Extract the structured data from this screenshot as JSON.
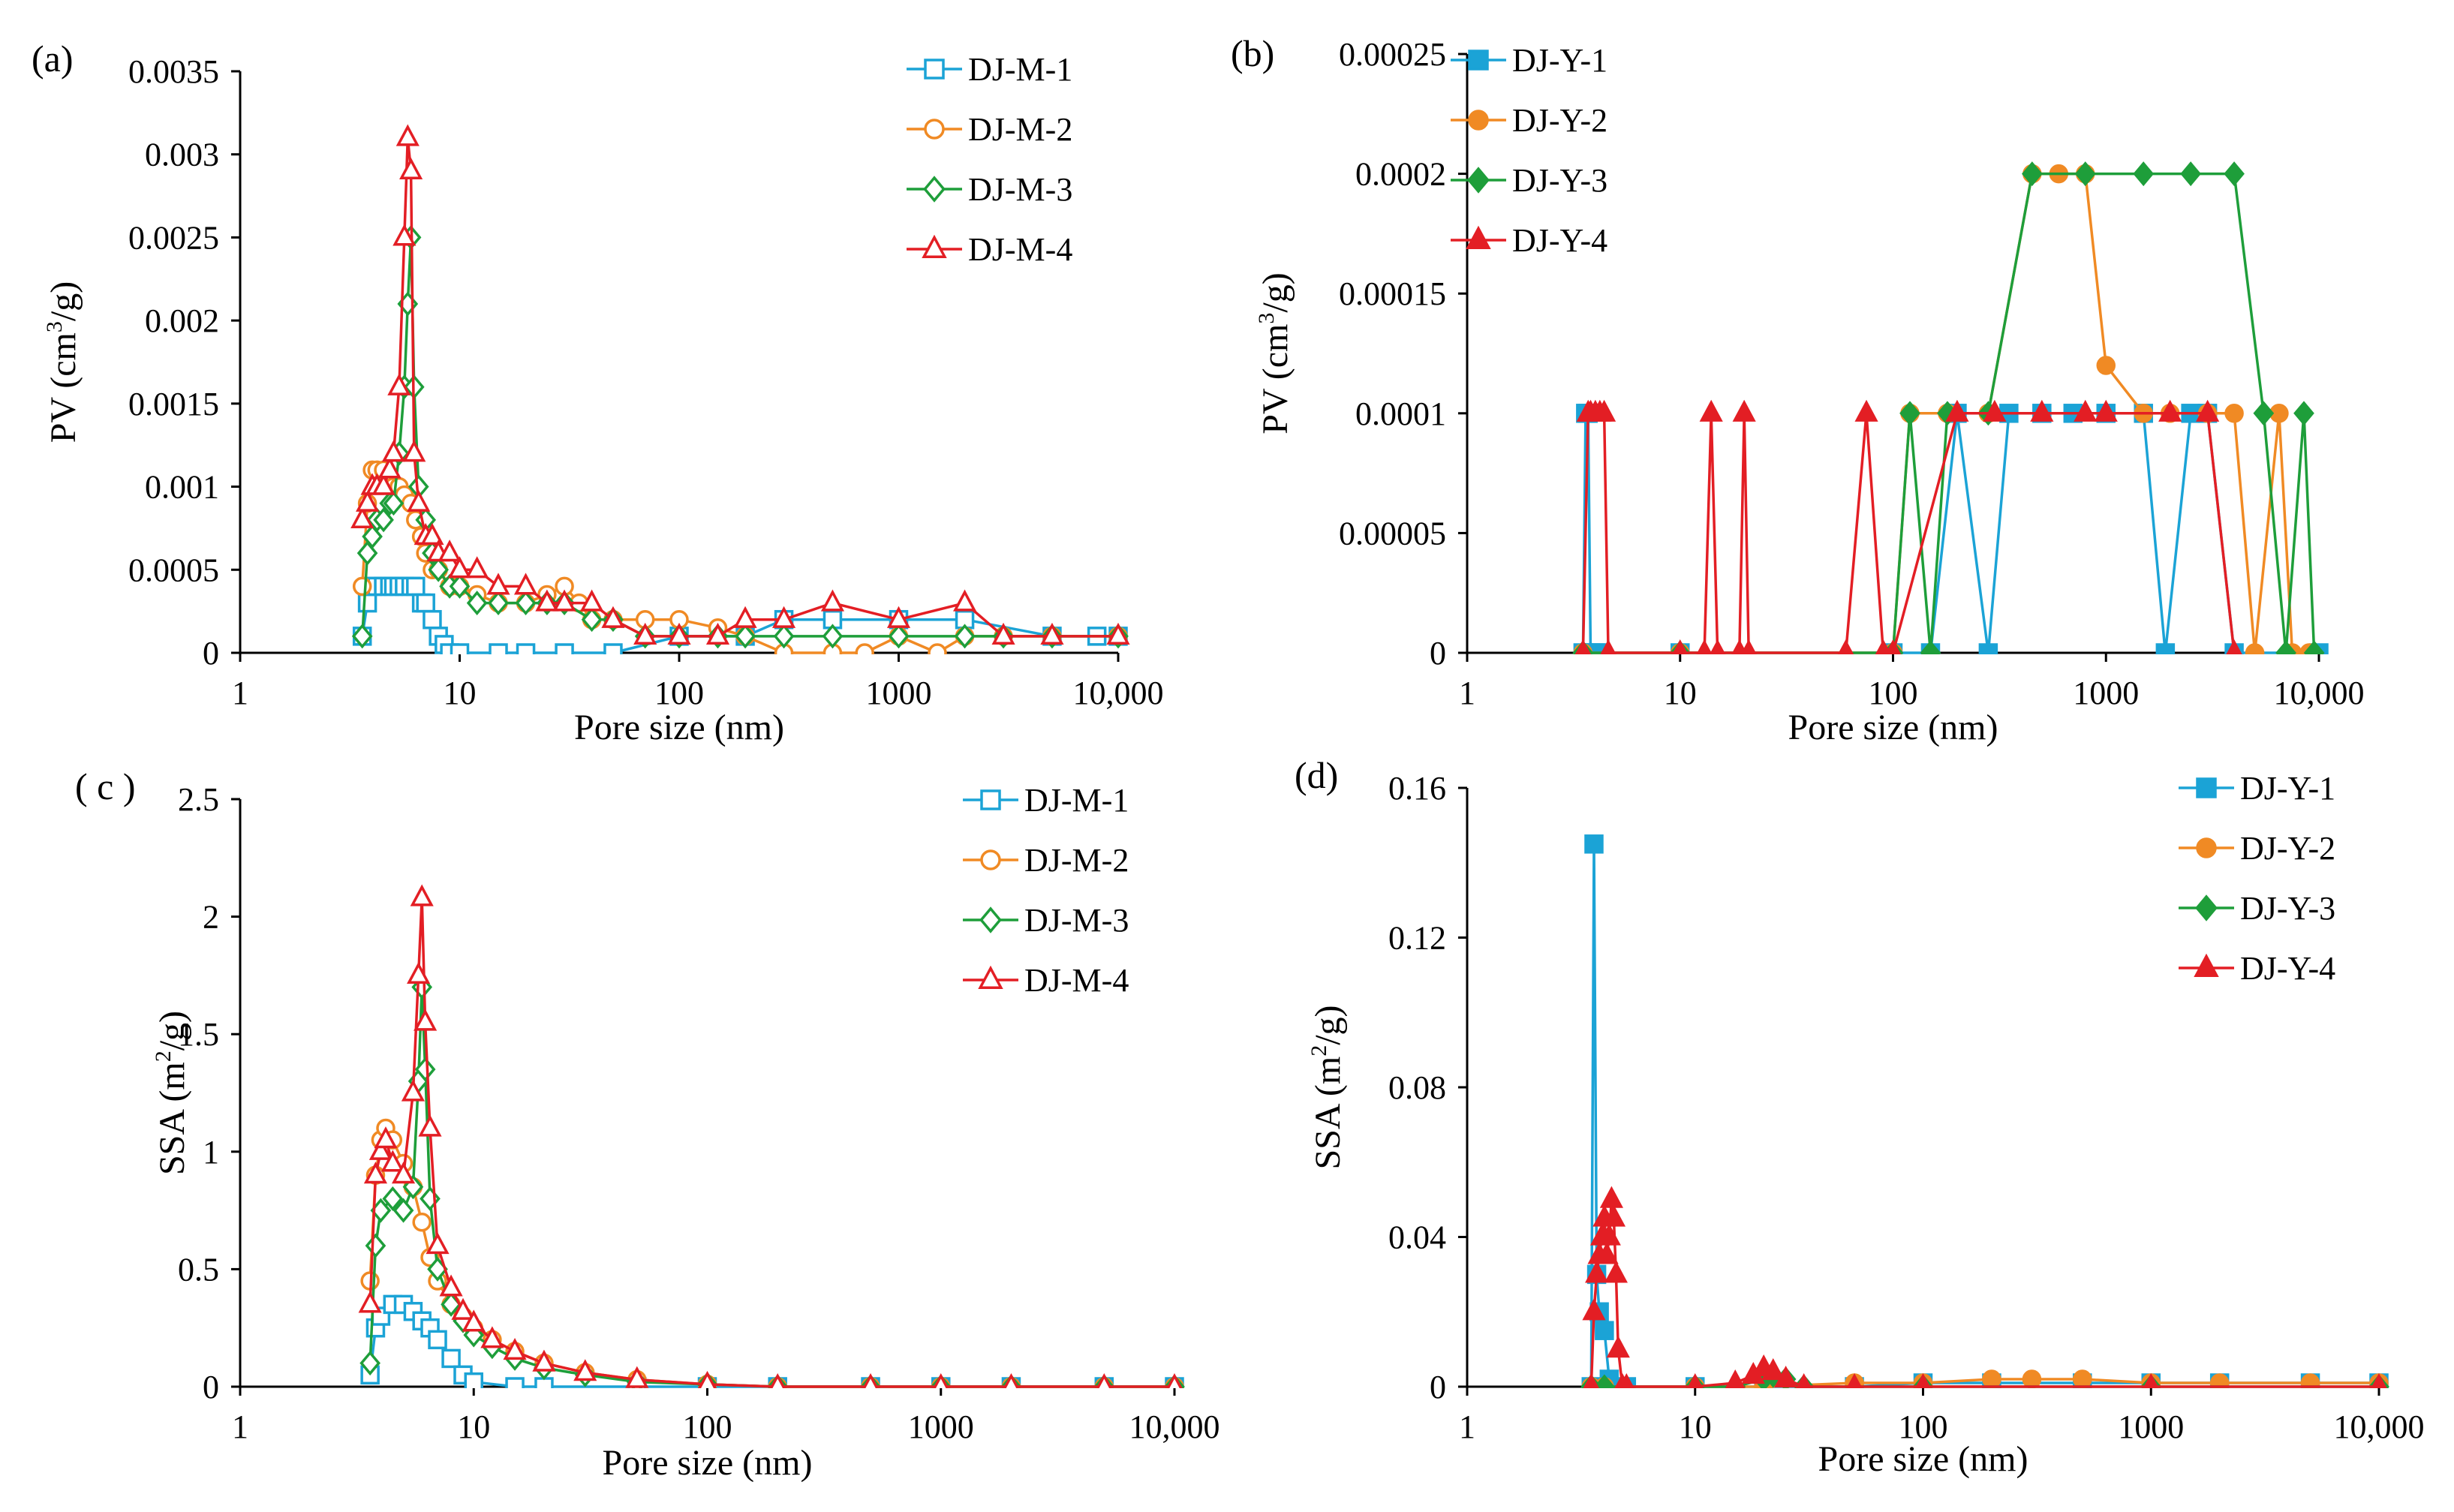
{
  "chart_data": [
    {
      "panel": "(a)",
      "type": "line",
      "xscale": "log",
      "xlim": [
        1,
        10000
      ],
      "ylim": [
        0,
        0.0035
      ],
      "xticks": [
        "1",
        "10",
        "100",
        "1000",
        "10,000"
      ],
      "yticks": [
        "0",
        "0.0005",
        "0.001",
        "0.0015",
        "0.002",
        "0.0025",
        "0.003",
        "0.0035"
      ],
      "xlabel": "Pore size (nm)",
      "ylabel_main": "PV (cm",
      "ylabel_sup": "3",
      "ylabel_end": "/g)",
      "legend_position": "top-right",
      "series": [
        {
          "name": "DJ-M-1",
          "color": "#1ba3d6",
          "marker": "square-open",
          "x": [
            3.6,
            3.8,
            4,
            4.2,
            4.5,
            4.8,
            5,
            5.3,
            5.6,
            6,
            6.3,
            6.7,
            7,
            7.5,
            8,
            8.5,
            9,
            10,
            15,
            20,
            30,
            50,
            100,
            200,
            300,
            500,
            1000,
            2000,
            5000,
            8000,
            10000
          ],
          "y": [
            0.0001,
            0.0003,
            0.0004,
            0.0004,
            0.0004,
            0.0004,
            0.0004,
            0.0004,
            0.0004,
            0.0004,
            0.0004,
            0.0003,
            0.0003,
            0.0002,
            0.0001,
            5e-05,
            0,
            0,
            0,
            0,
            0,
            0,
            0.0001,
            0.0001,
            0.0002,
            0.0002,
            0.0002,
            0.0002,
            0.0001,
            0.0001,
            0.0001
          ]
        },
        {
          "name": "DJ-M-2",
          "color": "#f08a24",
          "marker": "circle-open",
          "x": [
            3.6,
            3.8,
            4,
            4.2,
            4.5,
            4.8,
            5,
            5.3,
            5.6,
            6,
            6.3,
            6.7,
            7,
            7.5,
            8,
            9,
            10,
            12,
            15,
            20,
            25,
            30,
            35,
            40,
            50,
            70,
            100,
            150,
            200,
            300,
            500,
            700,
            1000,
            1500,
            2000,
            3000,
            5000,
            10000
          ],
          "y": [
            0.0004,
            0.0009,
            0.0011,
            0.0011,
            0.0011,
            0.00105,
            0.001,
            0.001,
            0.00095,
            0.0009,
            0.0008,
            0.0007,
            0.0006,
            0.0005,
            0.0005,
            0.0004,
            0.0004,
            0.00035,
            0.0003,
            0.0003,
            0.00035,
            0.0004,
            0.0003,
            0.0002,
            0.0002,
            0.0002,
            0.0002,
            0.00015,
            0.0001,
            0,
            0,
            0,
            0.0001,
            0,
            0.0001,
            0.0001,
            0.0001,
            0.0001
          ]
        },
        {
          "name": "DJ-M-3",
          "color": "#1e9e3a",
          "marker": "diamond-open",
          "x": [
            3.6,
            3.8,
            4,
            4.2,
            4.5,
            4.8,
            5,
            5.3,
            5.6,
            5.8,
            6,
            6.2,
            6.5,
            7,
            7.5,
            8,
            9,
            10,
            12,
            15,
            20,
            25,
            30,
            40,
            50,
            70,
            100,
            150,
            200,
            300,
            500,
            1000,
            2000,
            3000,
            5000,
            10000
          ],
          "y": [
            0.0001,
            0.0006,
            0.0007,
            0.0008,
            0.0008,
            0.0009,
            0.0009,
            0.0012,
            0.0016,
            0.0021,
            0.0025,
            0.0016,
            0.001,
            0.0008,
            0.0006,
            0.0005,
            0.0004,
            0.0004,
            0.0003,
            0.0003,
            0.0003,
            0.0003,
            0.0003,
            0.0002,
            0.0002,
            0.0001,
            0.0001,
            0.0001,
            0.0001,
            0.0001,
            0.0001,
            0.0001,
            0.0001,
            0.0001,
            0.0001,
            0.0001
          ]
        },
        {
          "name": "DJ-M-4",
          "color": "#e31e24",
          "marker": "triangle-open",
          "x": [
            3.6,
            3.8,
            4,
            4.2,
            4.5,
            4.8,
            5,
            5.3,
            5.6,
            5.8,
            6,
            6.2,
            6.5,
            7,
            7.5,
            8,
            9,
            10,
            12,
            15,
            20,
            25,
            30,
            40,
            50,
            70,
            100,
            150,
            200,
            300,
            500,
            1000,
            2000,
            3000,
            5000,
            10000
          ],
          "y": [
            0.0008,
            0.0009,
            0.001,
            0.001,
            0.001,
            0.0011,
            0.0012,
            0.0016,
            0.0025,
            0.0031,
            0.0029,
            0.0012,
            0.0009,
            0.0007,
            0.0007,
            0.0006,
            0.0006,
            0.0005,
            0.0005,
            0.0004,
            0.0004,
            0.0003,
            0.0003,
            0.0003,
            0.0002,
            0.0001,
            0.0001,
            0.0001,
            0.0002,
            0.0002,
            0.0003,
            0.0002,
            0.0003,
            0.0001,
            0.0001,
            0.0001
          ]
        }
      ]
    },
    {
      "panel": "(b)",
      "type": "line",
      "xscale": "log",
      "xlim": [
        1,
        10000
      ],
      "ylim": [
        0,
        0.00025
      ],
      "xticks": [
        "1",
        "10",
        "100",
        "1000",
        "10,000"
      ],
      "yticks": [
        "0",
        "0.00005",
        "0.0001",
        "0.00015",
        "0.0002",
        "0.00025"
      ],
      "xlabel": "Pore size (nm)",
      "ylabel_main": "PV (cm",
      "ylabel_sup": "3",
      "ylabel_end": "/g)",
      "legend_position": "top-left",
      "series": [
        {
          "name": "DJ-Y-1",
          "color": "#1ba3d6",
          "marker": "square-filled",
          "x": [
            3.5,
            3.6,
            3.7,
            3.8,
            4,
            4.2,
            10,
            100,
            150,
            200,
            280,
            350,
            500,
            700,
            1000,
            1500,
            1900,
            2500,
            3000,
            4000,
            10000
          ],
          "y": [
            0,
            0.0001,
            0.0001,
            0,
            0,
            0,
            0,
            0,
            0,
            0.0001,
            0,
            0.0001,
            0.0001,
            0.0001,
            0.0001,
            0.0001,
            0,
            0.0001,
            0.0001,
            0,
            0
          ]
        },
        {
          "name": "DJ-Y-2",
          "color": "#f08a24",
          "marker": "circle-filled",
          "x": [
            3.5,
            10,
            100,
            120,
            180,
            280,
            450,
            600,
            800,
            1000,
            1500,
            2000,
            3000,
            4000,
            5000,
            6500,
            7500,
            9000
          ],
          "y": [
            0,
            0,
            0,
            0.0001,
            0.0001,
            0.0001,
            0.0002,
            0.0002,
            0.0002,
            0.00012,
            0.0001,
            0.0001,
            0.0001,
            0.0001,
            0,
            0.0001,
            0,
            0
          ]
        },
        {
          "name": "DJ-Y-3",
          "color": "#1e9e3a",
          "marker": "diamond-filled",
          "x": [
            3.5,
            10,
            100,
            120,
            150,
            180,
            280,
            450,
            800,
            1500,
            2500,
            4000,
            5500,
            7000,
            8500,
            9500
          ],
          "y": [
            0,
            0,
            0,
            0.0001,
            0,
            0.0001,
            0.0001,
            0.0002,
            0.0002,
            0.0002,
            0.0002,
            0.0002,
            0.0001,
            0,
            0.0001,
            0
          ]
        },
        {
          "name": "DJ-Y-4",
          "color": "#e31e24",
          "marker": "triangle-filled",
          "x": [
            3.5,
            3.7,
            3.8,
            4,
            4.2,
            4.4,
            4.6,
            10,
            13,
            14,
            15,
            19,
            20,
            21,
            60,
            75,
            90,
            100,
            200,
            300,
            500,
            800,
            1000,
            2000,
            3000,
            4000
          ],
          "y": [
            0,
            0.0001,
            0.0001,
            0.0001,
            0.0001,
            0.0001,
            0,
            0,
            0,
            0.0001,
            0,
            0,
            0.0001,
            0,
            0,
            0.0001,
            0,
            0,
            0.0001,
            0.0001,
            0.0001,
            0.0001,
            0.0001,
            0.0001,
            0.0001,
            0
          ]
        }
      ]
    },
    {
      "panel": "( c )",
      "type": "line",
      "xscale": "log",
      "xlim": [
        1,
        10000
      ],
      "ylim": [
        0,
        2.5
      ],
      "xticks": [
        "1",
        "10",
        "100",
        "1000",
        "10,000"
      ],
      "yticks": [
        "0",
        "0.5",
        "1",
        "1.5",
        "2",
        "2.5"
      ],
      "xlabel": "Pore size (nm)",
      "ylabel_main": "SSA (m",
      "ylabel_sup": "2",
      "ylabel_end": "/g)",
      "legend_position": "top-right",
      "series": [
        {
          "name": "DJ-M-1",
          "color": "#1ba3d6",
          "marker": "square-open",
          "x": [
            3.6,
            3.8,
            4,
            4.5,
            5,
            5.5,
            6,
            6.5,
            7,
            8,
            9,
            10,
            15,
            20,
            50,
            100,
            200,
            500,
            1000,
            2000,
            5000,
            10000
          ],
          "y": [
            0.05,
            0.25,
            0.3,
            0.35,
            0.35,
            0.32,
            0.28,
            0.25,
            0.2,
            0.12,
            0.05,
            0.02,
            0,
            0,
            0,
            0,
            0,
            0,
            0,
            0,
            0,
            0
          ]
        },
        {
          "name": "DJ-M-2",
          "color": "#f08a24",
          "marker": "circle-open",
          "x": [
            3.6,
            3.8,
            4,
            4.2,
            4.5,
            5,
            5.5,
            6,
            6.5,
            7,
            8,
            9,
            10,
            12,
            15,
            20,
            30,
            50,
            100,
            200,
            500,
            1000,
            2000,
            5000,
            10000
          ],
          "y": [
            0.45,
            0.9,
            1.05,
            1.1,
            1.05,
            0.95,
            0.85,
            0.7,
            0.55,
            0.45,
            0.35,
            0.3,
            0.25,
            0.2,
            0.15,
            0.1,
            0.06,
            0.03,
            0.01,
            0,
            0,
            0,
            0,
            0,
            0
          ]
        },
        {
          "name": "DJ-M-3",
          "color": "#1e9e3a",
          "marker": "diamond-open",
          "x": [
            3.6,
            3.8,
            4,
            4.5,
            5,
            5.5,
            5.8,
            6,
            6.2,
            6.5,
            7,
            8,
            9,
            10,
            12,
            15,
            20,
            30,
            50,
            100,
            200,
            500,
            1000,
            2000,
            5000,
            10000
          ],
          "y": [
            0.1,
            0.6,
            0.75,
            0.8,
            0.75,
            0.85,
            1.3,
            1.7,
            1.35,
            0.8,
            0.5,
            0.35,
            0.28,
            0.22,
            0.17,
            0.12,
            0.08,
            0.05,
            0.02,
            0.01,
            0,
            0,
            0,
            0,
            0,
            0
          ]
        },
        {
          "name": "DJ-M-4",
          "color": "#e31e24",
          "marker": "triangle-open",
          "x": [
            3.6,
            3.8,
            4,
            4.2,
            4.5,
            5,
            5.5,
            5.8,
            6,
            6.2,
            6.5,
            7,
            8,
            9,
            10,
            12,
            15,
            20,
            30,
            50,
            100,
            200,
            500,
            1000,
            2000,
            5000,
            10000
          ],
          "y": [
            0.35,
            0.9,
            1.0,
            1.05,
            0.95,
            0.9,
            1.25,
            1.75,
            2.08,
            1.55,
            1.1,
            0.6,
            0.42,
            0.32,
            0.27,
            0.2,
            0.15,
            0.1,
            0.06,
            0.03,
            0.01,
            0,
            0,
            0,
            0,
            0,
            0
          ]
        }
      ]
    },
    {
      "panel": "(d)",
      "type": "line",
      "xscale": "log",
      "xlim": [
        1,
        10000
      ],
      "ylim": [
        0,
        0.16
      ],
      "xticks": [
        "1",
        "10",
        "100",
        "1000",
        "10,000"
      ],
      "yticks": [
        "0",
        "0.04",
        "0.08",
        "0.12",
        "0.16"
      ],
      "xlabel": "Pore size (nm)",
      "ylabel_main": "SSA (m",
      "ylabel_sup": "2",
      "ylabel_end": "/g)",
      "legend_position": "top-right",
      "series": [
        {
          "name": "DJ-Y-1",
          "color": "#1ba3d6",
          "marker": "square-filled",
          "x": [
            3.5,
            3.6,
            3.7,
            3.8,
            4,
            4.2,
            5,
            10,
            20,
            50,
            100,
            200,
            500,
            1000,
            2000,
            5000,
            10000
          ],
          "y": [
            0,
            0.145,
            0.03,
            0.02,
            0.015,
            0.002,
            0,
            0,
            0,
            0,
            0.001,
            0.001,
            0.001,
            0.001,
            0.001,
            0.001,
            0.001
          ]
        },
        {
          "name": "DJ-Y-2",
          "color": "#f08a24",
          "marker": "circle-filled",
          "x": [
            3.5,
            4,
            10,
            20,
            50,
            100,
            200,
            300,
            500,
            1000,
            2000,
            5000,
            10000
          ],
          "y": [
            0,
            0,
            0,
            0,
            0.001,
            0.001,
            0.002,
            0.002,
            0.002,
            0.001,
            0.001,
            0.001,
            0.001
          ]
        },
        {
          "name": "DJ-Y-3",
          "color": "#1e9e3a",
          "marker": "diamond-filled",
          "x": [
            3.5,
            4,
            10,
            15,
            20,
            22,
            25,
            30,
            100,
            1000,
            10000
          ],
          "y": [
            0,
            0,
            0,
            0,
            0.002,
            0.003,
            0.002,
            0,
            0,
            0,
            0
          ]
        },
        {
          "name": "DJ-Y-4",
          "color": "#e31e24",
          "marker": "triangle-filled",
          "x": [
            3.5,
            3.6,
            3.7,
            3.8,
            3.9,
            4,
            4.1,
            4.2,
            4.3,
            4.4,
            4.5,
            4.6,
            4.8,
            5,
            10,
            15,
            18,
            20,
            22,
            25,
            30,
            50,
            100,
            1000,
            10000
          ],
          "y": [
            0,
            0.02,
            0.03,
            0.035,
            0.04,
            0.045,
            0.035,
            0.04,
            0.05,
            0.045,
            0.03,
            0.01,
            0,
            0,
            0,
            0.001,
            0.003,
            0.005,
            0.004,
            0.002,
            0,
            0,
            0,
            0,
            0
          ]
        }
      ]
    }
  ]
}
